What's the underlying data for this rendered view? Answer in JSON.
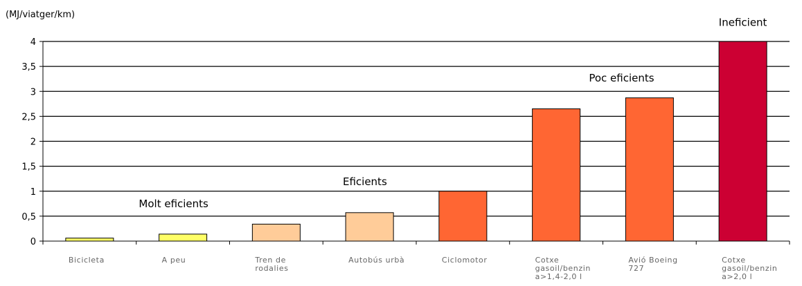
{
  "chart_data": {
    "type": "bar",
    "title": "",
    "xlabel": "",
    "ylabel": "(MJ/viatger/km)",
    "ylim": [
      0,
      4
    ],
    "yticks": [
      "0",
      "0,5",
      "1",
      "1,5",
      "2",
      "2,5",
      "3",
      "3,5",
      "4"
    ],
    "grid": true,
    "categories": [
      [
        "Bicicleta"
      ],
      [
        "A peu"
      ],
      [
        "Tren de",
        "rodalies"
      ],
      [
        "Autobús urbà"
      ],
      [
        "Ciclomotor"
      ],
      [
        "Cotxe",
        "gasoil/benzin",
        "a>1,4-2,0 l"
      ],
      [
        "Avió Boeing",
        "727"
      ],
      [
        "Cotxe",
        "gasoil/benzin",
        "a>2,0 l"
      ]
    ],
    "values": [
      0.06,
      0.14,
      0.34,
      0.57,
      1.0,
      2.65,
      2.87,
      4.0
    ],
    "colors": [
      "#ffff66",
      "#ffff66",
      "#ffcc99",
      "#ffcc99",
      "#ff6633",
      "#ff6633",
      "#ff6633",
      "#cc0033"
    ],
    "annotations": [
      {
        "text": "Molt eficients",
        "bar": 0.9,
        "value": 0.68
      },
      {
        "text": "Eficients",
        "bar": 2.95,
        "value": 1.12
      },
      {
        "text": "Poc eficients",
        "bar": 5.7,
        "value": 3.2
      },
      {
        "text": "Ineficient",
        "bar": 7.0,
        "value": 4.31
      }
    ]
  }
}
